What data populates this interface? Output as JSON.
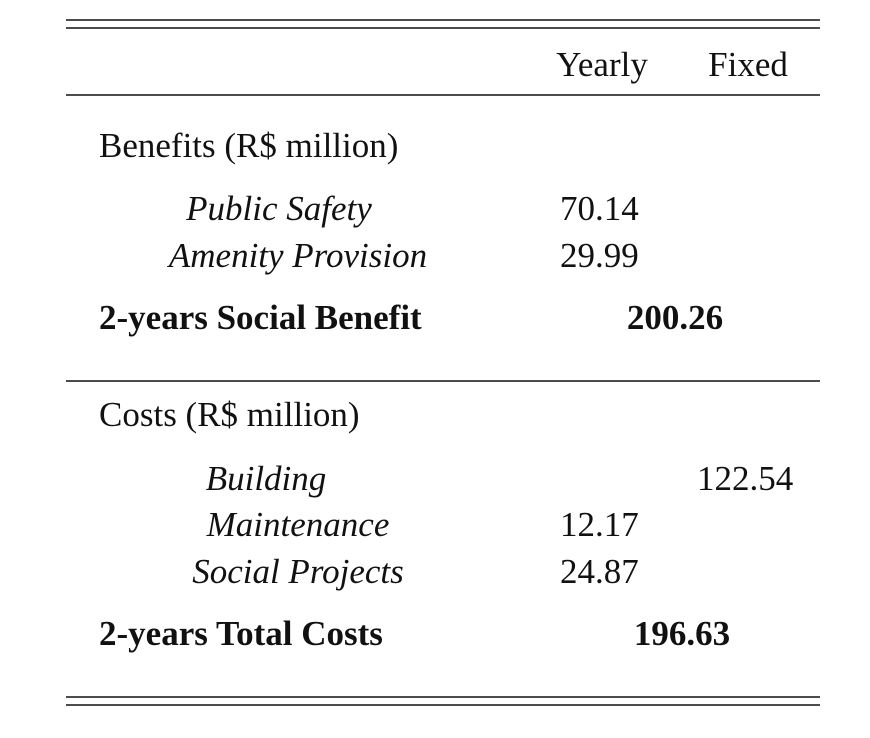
{
  "table": {
    "header": [
      "Yearly",
      "Fixed"
    ],
    "sections": [
      {
        "title": "Benefits (R$ million)",
        "rows": [
          {
            "label": "Public Safety",
            "yearly": "70.14"
          },
          {
            "label": "Amenity Provision",
            "yearly": "29.99"
          }
        ],
        "total": {
          "label": "2-years Social Benefit",
          "value": "200.26"
        }
      },
      {
        "title": "Costs (R$ million)",
        "rows": [
          {
            "label": "Building",
            "fixed": "122.54"
          },
          {
            "label": "Maintenance",
            "yearly": "12.17"
          },
          {
            "label": "Social Projects",
            "yearly": "24.87"
          }
        ],
        "total": {
          "label": "2-years Total Costs",
          "value": "196.63"
        }
      }
    ]
  }
}
